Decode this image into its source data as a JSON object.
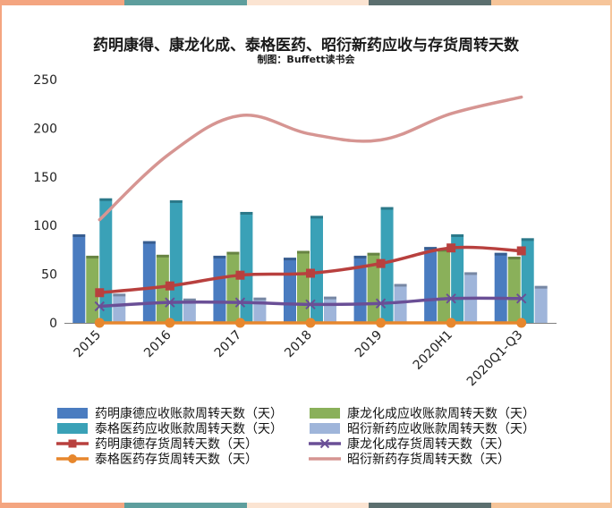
{
  "chart_data": {
    "type": "bar",
    "title": "药明康得、康龙化成、泰格医药、昭衍新药应收与存货周转天数",
    "subtitle": "制图：Buffett读书会",
    "categories": [
      "2015",
      "2016",
      "2017",
      "2018",
      "2019",
      "2020H1",
      "2020Q1-Q3"
    ],
    "ylim": [
      0,
      250
    ],
    "yticks": [
      0,
      50,
      100,
      150,
      200,
      250
    ],
    "grid": false,
    "legend_position": "bottom",
    "bar_series": [
      {
        "name": "药明康德应收账款周转天数（天）",
        "color": "#4a7cc0",
        "values": [
          91,
          84,
          69,
          67,
          69,
          78,
          72
        ]
      },
      {
        "name": "康龙化成应收账款周转天数（天）",
        "color": "#8ab05a",
        "values": [
          69,
          70,
          73,
          74,
          72,
          76,
          68
        ]
      },
      {
        "name": "泰格医药应收账款周转天数（天）",
        "color": "#3aa1b7",
        "values": [
          128,
          126,
          114,
          110,
          119,
          91,
          87
        ]
      },
      {
        "name": "昭衍新药应收账款周转天数（天）",
        "color": "#9fb5da",
        "values": [
          30,
          25,
          26,
          27,
          40,
          52,
          38
        ]
      }
    ],
    "line_series": [
      {
        "name": "药明康德存货周转天数（天）",
        "color": "#b8403e",
        "marker": "square",
        "values": [
          31,
          38,
          49,
          51,
          61,
          77,
          74
        ]
      },
      {
        "name": "康龙化成存货周转天数（天）",
        "color": "#6a4f96",
        "marker": "x",
        "values": [
          17,
          21,
          21,
          19,
          20,
          25,
          25
        ]
      },
      {
        "name": "泰格医药存货周转天数（天）",
        "color": "#e7872d",
        "marker": "circle",
        "values": [
          0,
          0,
          0,
          0,
          0,
          0,
          0
        ]
      },
      {
        "name": "昭衍新药存货周转天数（天）",
        "color": "#d69592",
        "marker": "none",
        "values": [
          106,
          174,
          213,
          194,
          188,
          215,
          232
        ]
      }
    ]
  },
  "frame": {
    "stripe_colors": [
      "#f4a580",
      "#5e9e9d",
      "#fbe4d2",
      "#5c6f6f",
      "#f6c59a"
    ]
  }
}
